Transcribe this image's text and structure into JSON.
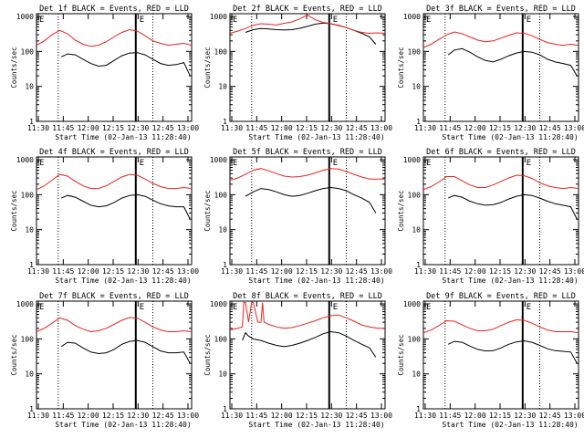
{
  "figure": {
    "xlabel": "Start Time (02-Jan-13 11:28:40)",
    "ylabel": "Counts/sec",
    "xticks": [
      "11:30",
      "11:45",
      "12:00",
      "12:15",
      "12:30",
      "12:45",
      "13:00"
    ],
    "yticks": [
      "1",
      "10",
      "100",
      "1000"
    ],
    "colors": {
      "events": "#000000",
      "lld": "#e8231b",
      "axes": "#000000"
    }
  },
  "chart_data": [
    {
      "type": "line",
      "title": "Det 1f BLACK = Events, RED = LLD",
      "flag_left": "E",
      "flag_right": "E",
      "xlim_min": [
        0,
        100
      ],
      "ylim": [
        1,
        1200
      ],
      "log_y": true,
      "series": [
        {
          "name": "Events",
          "x": [
            16,
            20,
            25,
            30,
            35,
            40,
            45,
            50,
            55,
            60,
            65,
            70,
            75,
            80,
            85,
            90,
            95,
            99
          ],
          "y": [
            70,
            85,
            80,
            60,
            45,
            38,
            40,
            55,
            75,
            90,
            92,
            80,
            60,
            45,
            40,
            42,
            48,
            20
          ]
        },
        {
          "name": "LLD",
          "x": [
            0,
            5,
            10,
            15,
            20,
            25,
            30,
            35,
            40,
            45,
            50,
            55,
            60,
            65,
            70,
            75,
            80,
            85,
            90,
            95,
            100
          ],
          "y": [
            150,
            200,
            300,
            400,
            320,
            210,
            160,
            140,
            150,
            190,
            260,
            350,
            420,
            380,
            280,
            200,
            170,
            150,
            160,
            170,
            150
          ]
        }
      ],
      "markers": {
        "dotted": [
          14,
          75
        ],
        "solid": [
          64
        ]
      }
    },
    {
      "type": "line",
      "title": "Det 2f BLACK = Events, RED = LLD",
      "flag_left": "E",
      "flag_right": "E",
      "xlim_min": [
        0,
        100
      ],
      "ylim": [
        1,
        1200
      ],
      "log_y": true,
      "series": [
        {
          "name": "Events",
          "x": [
            10,
            15,
            20,
            25,
            30,
            35,
            40,
            45,
            50,
            55,
            60,
            65,
            70,
            75,
            80,
            85,
            90,
            94
          ],
          "y": [
            350,
            420,
            450,
            440,
            420,
            410,
            420,
            460,
            520,
            600,
            650,
            620,
            550,
            480,
            400,
            330,
            260,
            160
          ]
        },
        {
          "name": "LLD",
          "x": [
            0,
            5,
            10,
            15,
            20,
            25,
            30,
            35,
            40,
            45,
            50,
            55,
            60,
            65,
            70,
            75,
            80,
            85,
            90,
            95,
            100
          ],
          "y": [
            330,
            380,
            450,
            560,
            620,
            600,
            570,
            640,
            700,
            850,
            1100,
            800,
            680,
            620,
            560,
            480,
            400,
            350,
            330,
            340,
            330
          ]
        }
      ],
      "markers": {
        "dotted": [
          14,
          75
        ],
        "solid": [
          64
        ]
      }
    },
    {
      "type": "line",
      "title": "Det 3f BLACK = Events, RED = LLD",
      "flag_left": "E",
      "flag_right": "E",
      "xlim_min": [
        0,
        100
      ],
      "ylim": [
        1,
        1200
      ],
      "log_y": true,
      "series": [
        {
          "name": "Events",
          "x": [
            16,
            20,
            25,
            30,
            35,
            40,
            45,
            50,
            55,
            60,
            65,
            70,
            75,
            80,
            85,
            90,
            95,
            99
          ],
          "y": [
            80,
            110,
            120,
            95,
            70,
            55,
            50,
            60,
            75,
            90,
            100,
            95,
            80,
            60,
            50,
            45,
            40,
            20
          ]
        },
        {
          "name": "LLD",
          "x": [
            0,
            5,
            10,
            15,
            20,
            25,
            30,
            35,
            40,
            45,
            50,
            55,
            60,
            65,
            70,
            75,
            80,
            85,
            90,
            95,
            100
          ],
          "y": [
            130,
            160,
            220,
            300,
            360,
            320,
            260,
            210,
            190,
            200,
            240,
            290,
            340,
            330,
            280,
            220,
            180,
            160,
            150,
            160,
            150
          ]
        }
      ],
      "markers": {
        "dotted": [
          14,
          75
        ],
        "solid": [
          64
        ]
      }
    },
    {
      "type": "line",
      "title": "Det 4f BLACK = Events, RED = LLD",
      "flag_left": "E",
      "flag_right": "E",
      "xlim_min": [
        0,
        100
      ],
      "ylim": [
        1,
        1200
      ],
      "log_y": true,
      "series": [
        {
          "name": "Events",
          "x": [
            16,
            20,
            25,
            30,
            35,
            40,
            45,
            50,
            55,
            60,
            65,
            70,
            75,
            80,
            85,
            90,
            95,
            99
          ],
          "y": [
            80,
            95,
            85,
            65,
            50,
            45,
            48,
            60,
            80,
            95,
            100,
            90,
            70,
            55,
            48,
            45,
            45,
            20
          ]
        },
        {
          "name": "LLD",
          "x": [
            0,
            5,
            10,
            15,
            20,
            25,
            30,
            35,
            40,
            45,
            50,
            55,
            60,
            65,
            70,
            75,
            80,
            85,
            90,
            95,
            100
          ],
          "y": [
            140,
            180,
            260,
            380,
            340,
            240,
            180,
            150,
            150,
            180,
            240,
            320,
            380,
            360,
            280,
            210,
            170,
            150,
            150,
            160,
            150
          ]
        }
      ],
      "markers": {
        "dotted": [
          14,
          75
        ],
        "solid": [
          64
        ]
      }
    },
    {
      "type": "line",
      "title": "Det 5f BLACK = Events, RED = LLD",
      "flag_left": "E",
      "flag_right": "E",
      "xlim_min": [
        0,
        100
      ],
      "ylim": [
        1,
        1200
      ],
      "log_y": true,
      "series": [
        {
          "name": "Events",
          "x": [
            10,
            15,
            20,
            25,
            30,
            35,
            40,
            45,
            50,
            55,
            60,
            65,
            70,
            75,
            80,
            85,
            90,
            94
          ],
          "y": [
            90,
            120,
            150,
            140,
            120,
            100,
            90,
            95,
            110,
            130,
            150,
            160,
            150,
            130,
            100,
            80,
            60,
            30
          ]
        },
        {
          "name": "LLD",
          "x": [
            0,
            5,
            10,
            15,
            20,
            25,
            30,
            35,
            40,
            45,
            50,
            55,
            60,
            65,
            70,
            75,
            80,
            85,
            90,
            95,
            100
          ],
          "y": [
            260,
            300,
            380,
            500,
            560,
            480,
            400,
            340,
            320,
            330,
            360,
            420,
            500,
            560,
            540,
            460,
            380,
            320,
            280,
            280,
            280
          ]
        }
      ],
      "markers": {
        "dotted": [
          14,
          75
        ],
        "solid": [
          64
        ]
      }
    },
    {
      "type": "line",
      "title": "Det 6f BLACK = Events, RED = LLD",
      "flag_left": "E",
      "flag_right": "E",
      "xlim_min": [
        0,
        100
      ],
      "ylim": [
        1,
        1200
      ],
      "log_y": true,
      "series": [
        {
          "name": "Events",
          "x": [
            16,
            20,
            25,
            30,
            35,
            40,
            45,
            50,
            55,
            60,
            65,
            70,
            75,
            80,
            85,
            90,
            95,
            99
          ],
          "y": [
            80,
            95,
            85,
            65,
            55,
            50,
            52,
            60,
            75,
            90,
            100,
            95,
            80,
            65,
            55,
            50,
            45,
            20
          ]
        },
        {
          "name": "LLD",
          "x": [
            0,
            5,
            10,
            15,
            20,
            25,
            30,
            35,
            40,
            45,
            50,
            55,
            60,
            65,
            70,
            75,
            80,
            85,
            90,
            95,
            100
          ],
          "y": [
            140,
            170,
            230,
            330,
            330,
            250,
            190,
            160,
            160,
            190,
            240,
            300,
            360,
            350,
            290,
            220,
            180,
            160,
            150,
            160,
            150
          ]
        }
      ],
      "markers": {
        "dotted": [
          14,
          75
        ],
        "solid": [
          64
        ]
      }
    },
    {
      "type": "line",
      "title": "Det 7f BLACK = Events, RED = LLD",
      "flag_left": "E",
      "flag_right": "E",
      "xlim_min": [
        0,
        100
      ],
      "ylim": [
        1,
        1200
      ],
      "log_y": true,
      "series": [
        {
          "name": "Events",
          "x": [
            16,
            20,
            25,
            30,
            35,
            40,
            45,
            50,
            55,
            60,
            65,
            70,
            75,
            80,
            85,
            90,
            95,
            99
          ],
          "y": [
            60,
            80,
            75,
            55,
            42,
            38,
            40,
            50,
            70,
            85,
            90,
            80,
            60,
            45,
            40,
            40,
            42,
            20
          ]
        },
        {
          "name": "LLD",
          "x": [
            0,
            5,
            10,
            15,
            20,
            25,
            30,
            35,
            40,
            45,
            50,
            55,
            60,
            65,
            70,
            75,
            80,
            85,
            90,
            95,
            100
          ],
          "y": [
            160,
            200,
            280,
            400,
            340,
            240,
            190,
            160,
            170,
            200,
            260,
            340,
            410,
            390,
            300,
            220,
            180,
            160,
            160,
            170,
            160
          ]
        }
      ],
      "markers": {
        "dotted": [
          14,
          75
        ],
        "solid": [
          64
        ]
      }
    },
    {
      "type": "line",
      "title": "Det 8f BLACK = Events, RED = LLD",
      "flag_left": "E",
      "flag_right": "E",
      "xlim_min": [
        0,
        100
      ],
      "ylim": [
        1,
        1200
      ],
      "log_y": true,
      "series": [
        {
          "name": "Events",
          "x": [
            8,
            10,
            12,
            15,
            20,
            25,
            30,
            35,
            40,
            45,
            50,
            55,
            60,
            65,
            70,
            75,
            80,
            85,
            90,
            94
          ],
          "y": [
            90,
            150,
            120,
            100,
            90,
            75,
            65,
            60,
            65,
            75,
            90,
            110,
            140,
            160,
            150,
            120,
            90,
            70,
            55,
            30
          ]
        },
        {
          "name": "LLD",
          "x": [
            0,
            5,
            8,
            9,
            10,
            12,
            14,
            15,
            18,
            20,
            21,
            22,
            25,
            30,
            35,
            40,
            45,
            50,
            55,
            60,
            65,
            70,
            75,
            80,
            85,
            90,
            95,
            100
          ],
          "y": [
            180,
            200,
            220,
            1100,
            1100,
            300,
            1100,
            1100,
            300,
            300,
            1100,
            300,
            260,
            220,
            200,
            210,
            240,
            280,
            330,
            400,
            460,
            480,
            400,
            320,
            250,
            220,
            200,
            200
          ]
        }
      ],
      "markers": {
        "dotted": [
          14,
          75
        ],
        "solid": [
          64
        ]
      }
    },
    {
      "type": "line",
      "title": "Det 9f BLACK = Events, RED = LLD",
      "flag_left": "E",
      "flag_right": "E",
      "xlim_min": [
        0,
        100
      ],
      "ylim": [
        1,
        1200
      ],
      "log_y": true,
      "series": [
        {
          "name": "Events",
          "x": [
            16,
            20,
            25,
            30,
            35,
            40,
            45,
            50,
            55,
            60,
            65,
            70,
            75,
            80,
            85,
            90,
            95,
            99
          ],
          "y": [
            70,
            85,
            80,
            62,
            50,
            45,
            46,
            55,
            70,
            82,
            88,
            80,
            65,
            52,
            46,
            44,
            42,
            20
          ]
        },
        {
          "name": "LLD",
          "x": [
            0,
            5,
            10,
            15,
            20,
            25,
            30,
            35,
            40,
            45,
            50,
            55,
            60,
            65,
            70,
            75,
            80,
            85,
            90,
            95,
            100
          ],
          "y": [
            150,
            180,
            240,
            330,
            320,
            250,
            200,
            170,
            170,
            190,
            240,
            300,
            350,
            340,
            280,
            220,
            180,
            160,
            160,
            160,
            150
          ]
        }
      ],
      "markers": {
        "dotted": [
          14,
          75
        ],
        "solid": [
          64
        ]
      }
    }
  ]
}
